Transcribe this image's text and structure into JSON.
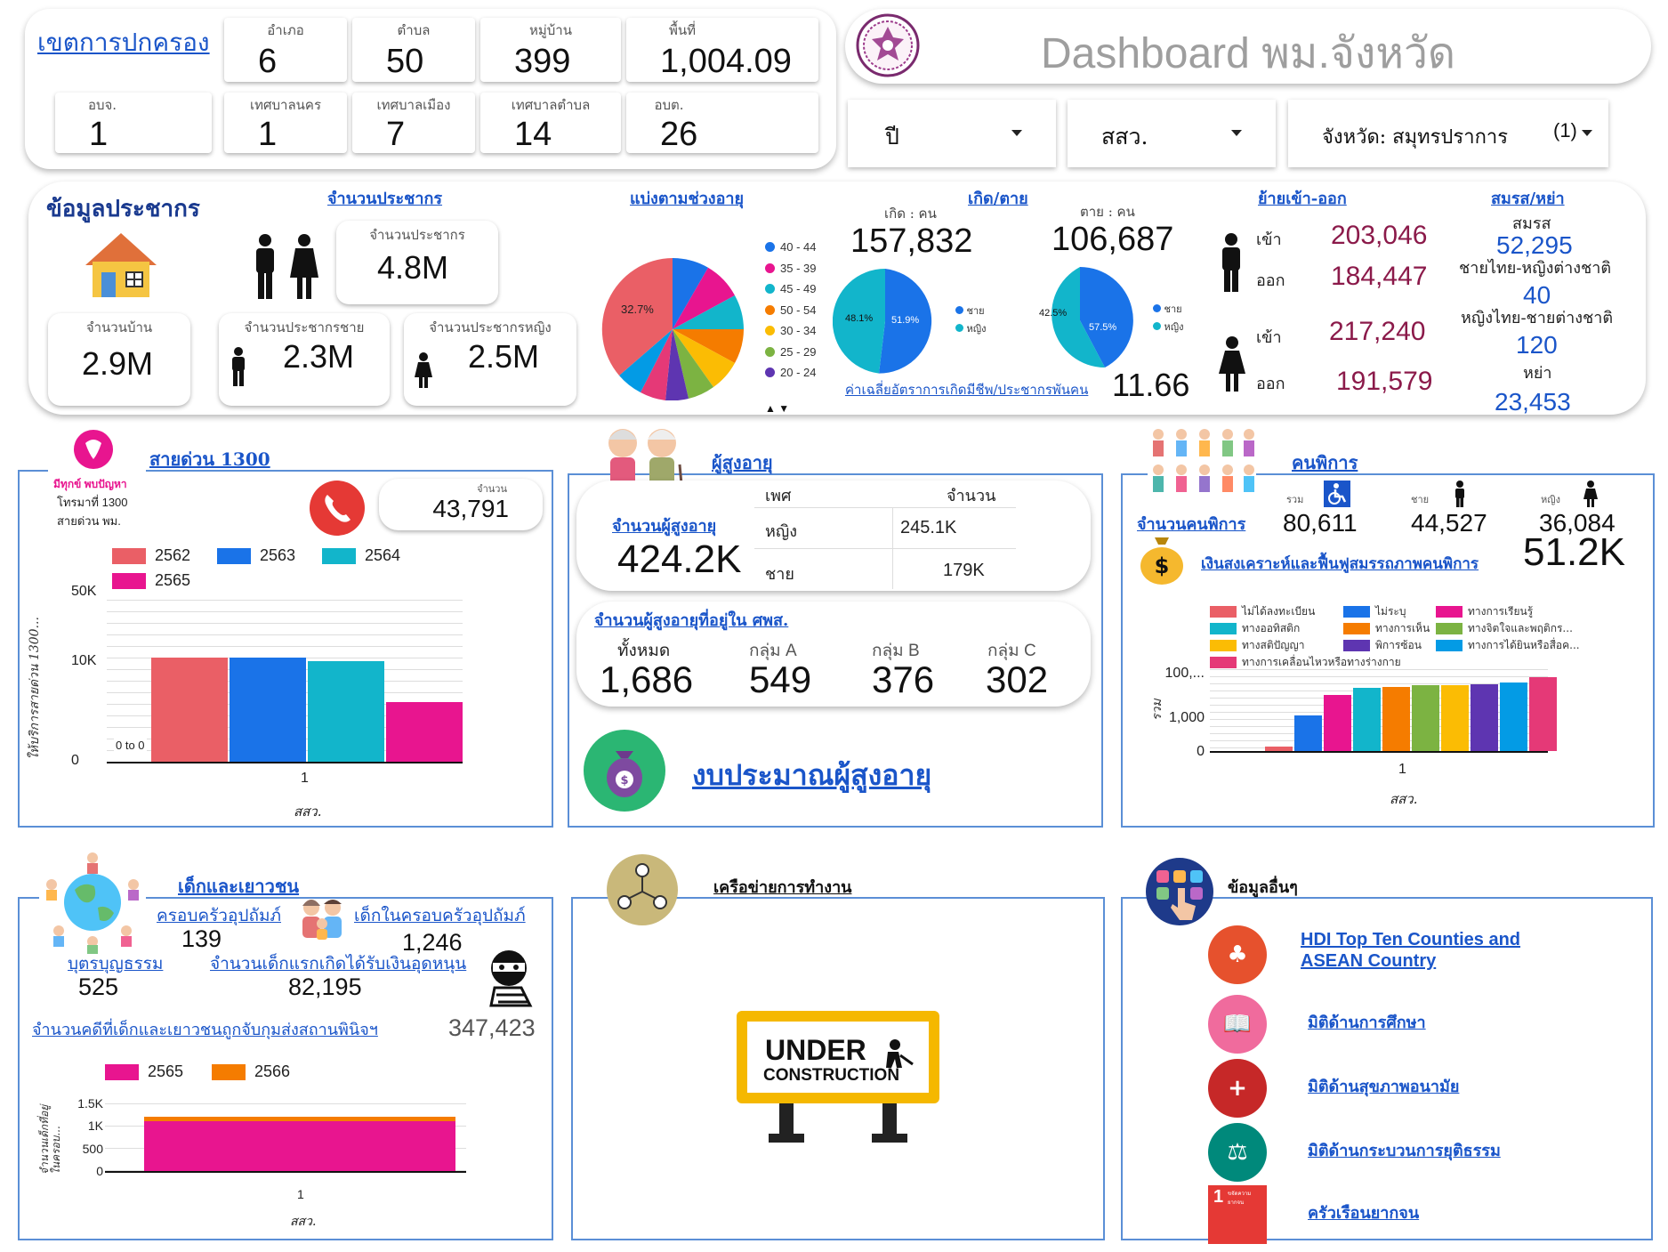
{
  "admin": {
    "title": "เขตการปกครอง",
    "stats": [
      {
        "label": "อำเภอ",
        "value": "6"
      },
      {
        "label": "ตำบล",
        "value": "50"
      },
      {
        "label": "หมู่บ้าน",
        "value": "399"
      },
      {
        "label": "พื้นที่",
        "value": "1,004.09"
      },
      {
        "label": "อบจ.",
        "value": "1"
      },
      {
        "label": "เทศบาลนคร",
        "value": "1"
      },
      {
        "label": "เทศบาลเมือง",
        "value": "7"
      },
      {
        "label": "เทศบาลตำบล",
        "value": "14"
      },
      {
        "label": "อบต.",
        "value": "26"
      }
    ]
  },
  "header": {
    "title": "Dashboard พม.จังหวัด"
  },
  "filters": {
    "year": "ปี",
    "office": "สสว.",
    "province": "จังหวัด: สมุทรปราการ",
    "province_count": "(1)"
  },
  "population": {
    "section_title": "ข้อมูลประชากร",
    "link_population": "จำนวนประชากร",
    "pop_label": "จำนวนประชากร",
    "pop_value": "4.8M",
    "house_label": "จำนวนบ้าน",
    "house_value": "2.9M",
    "male_label": "จำนวนประชากรชาย",
    "male_value": "2.3M",
    "female_label": "จำนวนประชากรหญิง",
    "female_value": "2.5M",
    "age_link": "แบ่งตามช่วงอายุ",
    "age_pie": {
      "top_slice_label": "32.7%",
      "legend": [
        {
          "name": "40 - 44",
          "color": "#1a73e8"
        },
        {
          "name": "35 - 39",
          "color": "#e8158f"
        },
        {
          "name": "45 - 49",
          "color": "#12b5cb"
        },
        {
          "name": "50 - 54",
          "color": "#f57c00"
        },
        {
          "name": "30 - 34",
          "color": "#fbbc04"
        },
        {
          "name": "25 - 29",
          "color": "#7cb342"
        },
        {
          "name": "20 - 24",
          "color": "#5e35b1"
        }
      ]
    },
    "birth_death_link": "เกิด/ตาย",
    "birth_label": "เกิด : คน",
    "birth_value": "157,832",
    "death_label": "ตาย : คน",
    "death_value": "106,687",
    "birth_pie": {
      "male": "51.9%",
      "female": "48.1%"
    },
    "death_pie": {
      "male": "57.5%",
      "female": "42.5%"
    },
    "gender_male": "ชาย",
    "gender_female": "หญิง",
    "fertility_link": "ค่าเฉลี่ยอัตราการเกิดมีชีพ/ประชากรพันคน",
    "fertility_value": "11.66",
    "migration_link": "ย้ายเข้า-ออก",
    "mig_in_label": "เข้า",
    "mig_out_label": "ออก",
    "male_in": "203,046",
    "male_out": "184,447",
    "female_in": "217,240",
    "female_out": "191,579",
    "marriage_link": "สมรส/หย่า",
    "marry_label": "สมรส",
    "marry_value": "52,295",
    "thai_man_label": "ชายไทย-หญิงต่างชาติ",
    "thai_man_value": "40",
    "thai_woman_label": "หญิงไทย-ชายต่างชาติ",
    "thai_woman_value": "120",
    "divorce_label": "หย่า",
    "divorce_value": "23,453"
  },
  "hotline": {
    "logo_line1": "มีทุกข์ พบปัญหา",
    "logo_line2": "โทรมาที่ 1300",
    "logo_line3": "สายด่วน พม.",
    "title": "สายด่วน 1300",
    "count_label": "จำนวน",
    "count_value": "43,791",
    "chart_data": {
      "type": "bar",
      "categories": [
        "1"
      ],
      "series": [
        {
          "name": "2562",
          "values": [
            12500
          ],
          "color": "#ea5f66"
        },
        {
          "name": "2563",
          "values": [
            12500
          ],
          "color": "#1a73e8"
        },
        {
          "name": "2564",
          "values": [
            10400
          ],
          "color": "#12b5cb"
        },
        {
          "name": "2565",
          "values": [
            6000
          ],
          "color": "#e8158f"
        }
      ],
      "yticks": [
        "50K",
        "10K",
        "0"
      ],
      "xlabel": "สสว.",
      "ylabel": "ให้บริการสายด่วน 1300...",
      "zero_note": "0 to 0"
    }
  },
  "elderly": {
    "title": "ผู้สูงอายุ",
    "count_link": "จำนวนผู้สูงอายุ",
    "count_value": "424.2K",
    "table_headers": [
      "เพศ",
      "จำนวน"
    ],
    "table_rows": [
      [
        "หญิง",
        "245.1K"
      ],
      [
        "ชาย",
        "179K"
      ]
    ],
    "center_link": "จำนวนผู้สูงอายุที่อยู่ใน ศพส.",
    "center_headers": [
      "ทั้งหมด",
      "กลุ่ม A",
      "กลุ่ม B",
      "กลุ่ม C"
    ],
    "center_values": [
      "1,686",
      "549",
      "376",
      "302"
    ],
    "budget_link": "งบประมาณผู้สูงอายุ"
  },
  "disabled": {
    "title": "คนพิการ",
    "count_link": "จำนวนคนพิการ",
    "total_label": "รวม",
    "total_value": "80,611",
    "male_label": "ชาย",
    "male_value": "44,527",
    "female_label": "หญิง",
    "female_value": "36,084",
    "welfare_link": "เงินสงเคราะห์และฟื้นฟูสมรรถภาพคนพิการ",
    "welfare_value": "51.2K",
    "chart_data": {
      "type": "bar",
      "categories": [
        "1"
      ],
      "series": [
        {
          "name": "ไม่ได้ลงทะเบียน",
          "values": [
            2
          ],
          "color": "#ea5f66"
        },
        {
          "name": "ไม่ระบุ",
          "values": [
            170
          ],
          "color": "#1a73e8"
        },
        {
          "name": "ทางการเรียนรู้",
          "values": [
            3200
          ],
          "color": "#e8158f"
        },
        {
          "name": "ทางออทิสติก",
          "values": [
            9000
          ],
          "color": "#12b5cb"
        },
        {
          "name": "ทางการเห็น",
          "values": [
            10500
          ],
          "color": "#f57c00"
        },
        {
          "name": "ทางจิตใจและพฤติกร...",
          "values": [
            12500
          ],
          "color": "#7cb342"
        },
        {
          "name": "ทางสติปัญญา",
          "values": [
            13500
          ],
          "color": "#fbbc04"
        },
        {
          "name": "พิการซ้อน",
          "values": [
            15500
          ],
          "color": "#5e35b1"
        },
        {
          "name": "ทางการได้ยินหรือสื่อค...",
          "values": [
            20000
          ],
          "color": "#039be5"
        },
        {
          "name": "ทางการเคลื่อนไหวหรือทางร่างกาย",
          "values": [
            42000
          ],
          "color": "#e53977"
        }
      ],
      "yticks": [
        "100,...",
        "1,000",
        "0"
      ],
      "xlabel": "สสว.",
      "ylabel": "รวม",
      "scale": "log"
    }
  },
  "youth": {
    "title": "เด็กและเยาวชน",
    "family_link": "ครอบครัวอุปถัมภ์",
    "family_value": "139",
    "child_link": "เด็กในครอบครัวอุปถัมภ์",
    "child_value": "1,246",
    "adopt_link": "บุตรบุญธรรม",
    "adopt_value": "525",
    "newborn_link": "จำนวนเด็กแรกเกิดได้รับเงินอุดหนุน",
    "newborn_value": "82,195",
    "case_link": "จำนวนคดีที่เด็กและเยาวชนถูกจับกุมส่งสถานพินิจฯ",
    "case_value": "347,423",
    "chart_data": {
      "type": "bar",
      "stacked": true,
      "categories": [
        "1"
      ],
      "series": [
        {
          "name": "2565",
          "values": [
            1100
          ],
          "color": "#e8158f"
        },
        {
          "name": "2566",
          "values": [
            110
          ],
          "color": "#f57c00"
        }
      ],
      "yticks": [
        "1.5K",
        "1K",
        "500",
        "0"
      ],
      "xlabel": "สสว.",
      "ylabel": "จำนวนเด็กที่อยู่ในครอบ..."
    }
  },
  "network": {
    "title": "เครือข่ายการทำงาน",
    "sign_line1": "UNDER",
    "sign_line2": "CONSTRUCTION"
  },
  "other": {
    "title": "ข้อมูลอื่นๆ",
    "links": [
      {
        "label": " HDI Top Ten Counties and ASEAN Country",
        "color": "#e6512d"
      },
      {
        "label": "มิติด้านการศึกษา",
        "color": "#f06b9d"
      },
      {
        "label": "มิติด้านสุขภาพอนามัย",
        "color": "#c62828"
      },
      {
        "label": "มิติด้านกระบวนการยุติธรรม",
        "color": "#00897b"
      },
      {
        "label": "ครัวเรือนยากจน",
        "color": "#e53935"
      }
    ],
    "sdg_number": "1",
    "sdg_text": "ขจัดความยากจน"
  }
}
